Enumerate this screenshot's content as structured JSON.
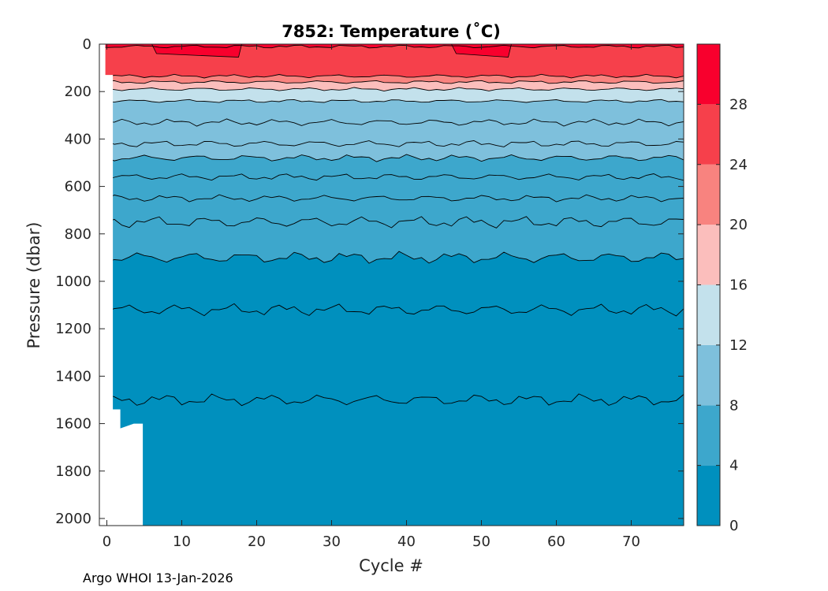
{
  "chart_data": {
    "type": "heatmap",
    "title": "7852:  Temperature (˚C)",
    "xlabel": "Cycle #",
    "ylabel": "Pressure (dbar)",
    "xlim": [
      -1,
      77
    ],
    "ylim": [
      0,
      2030
    ],
    "y_reversed": true,
    "xticks": [
      0,
      10,
      20,
      30,
      40,
      50,
      60,
      70
    ],
    "yticks": [
      0,
      200,
      400,
      600,
      800,
      1000,
      1200,
      1400,
      1600,
      1800,
      2000
    ],
    "colorbar": {
      "ticks": [
        0,
        4,
        8,
        12,
        16,
        20,
        24,
        28
      ],
      "range": [
        0,
        32
      ],
      "levels": [
        {
          "from": 0,
          "to": 4,
          "color": "#0090be"
        },
        {
          "from": 4,
          "to": 8,
          "color": "#3da7cc"
        },
        {
          "from": 8,
          "to": 12,
          "color": "#7ec0dc"
        },
        {
          "from": 12,
          "to": 16,
          "color": "#c3e1ec"
        },
        {
          "from": 16,
          "to": 20,
          "color": "#fbbebc"
        },
        {
          "from": 20,
          "to": 24,
          "color": "#f8837f"
        },
        {
          "from": 24,
          "to": 28,
          "color": "#f6404b"
        },
        {
          "from": 28,
          "to": 32,
          "color": "#f8002d"
        }
      ]
    },
    "contour_isotherms_degC": [
      2,
      3,
      4,
      5,
      6,
      7,
      8,
      9,
      10,
      12,
      14,
      16,
      18,
      20,
      22,
      24,
      28
    ],
    "approx_isotherm_depths_dbar": [
      {
        "temp": 28,
        "depth": 10
      },
      {
        "temp": 24,
        "depth": 135
      },
      {
        "temp": 20,
        "depth": 160
      },
      {
        "temp": 16,
        "depth": 190
      },
      {
        "temp": 12,
        "depth": 240
      },
      {
        "temp": 10,
        "depth": 330
      },
      {
        "temp": 9,
        "depth": 420
      },
      {
        "temp": 8,
        "depth": 480
      },
      {
        "temp": 7,
        "depth": 560
      },
      {
        "temp": 6,
        "depth": 650
      },
      {
        "temp": 5,
        "depth": 750
      },
      {
        "temp": 4,
        "depth": 900
      },
      {
        "temp": 3,
        "depth": 1120
      },
      {
        "temp": 2,
        "depth": 1500
      }
    ]
  },
  "footer_text": "Argo WHOI 13-Jan-2026"
}
